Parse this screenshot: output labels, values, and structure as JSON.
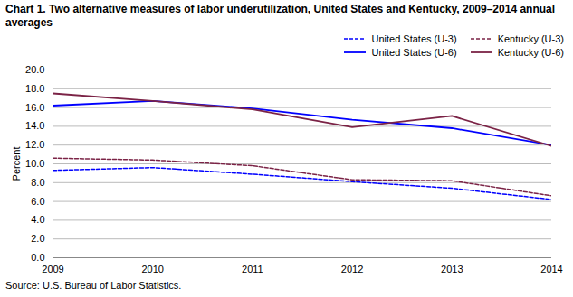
{
  "chart_data": {
    "type": "line",
    "title": "Chart 1. Two alternative measures of labor underutilization, United States and Kentucky, 2009–2014 annual averages",
    "y_label": "Percent",
    "caption": "Source: U.S. Bureau of Labor Statistics.",
    "x": [
      2009,
      2010,
      2011,
      2012,
      2013,
      2014
    ],
    "series": [
      {
        "name": "United States (U-3)",
        "color": "#0000FF",
        "line_style": "dashed",
        "values": [
          9.3,
          9.6,
          8.9,
          8.1,
          7.4,
          6.2
        ]
      },
      {
        "name": "Kentucky (U-3)",
        "color": "#7B2346",
        "line_style": "dashed",
        "values": [
          10.6,
          10.4,
          9.8,
          8.3,
          8.2,
          6.6
        ]
      },
      {
        "name": "United States (U-6)",
        "color": "#0000FF",
        "line_style": "solid",
        "values": [
          16.2,
          16.7,
          15.9,
          14.7,
          13.8,
          12.0
        ]
      },
      {
        "name": "Kentucky (U-6)",
        "color": "#7B2346",
        "line_style": "solid",
        "values": [
          17.5,
          16.7,
          15.8,
          13.9,
          15.1,
          11.9
        ]
      }
    ],
    "xlim": [
      2009,
      2014
    ],
    "xticks": [
      2009,
      2010,
      2011,
      2012,
      2013,
      2014
    ],
    "ylim": [
      0,
      20
    ],
    "yticks": [
      {
        "value": 0,
        "label": "0.0"
      },
      {
        "value": 2,
        "label": "2.0"
      },
      {
        "value": 4,
        "label": "4.0"
      },
      {
        "value": 6,
        "label": "6.0"
      },
      {
        "value": 8,
        "label": "8.0"
      },
      {
        "value": 10,
        "label": "10.0"
      },
      {
        "value": 12,
        "label": "12.0"
      },
      {
        "value": 14,
        "label": "14.0"
      },
      {
        "value": 16,
        "label": "16.0"
      },
      {
        "value": 18,
        "label": "18.0"
      },
      {
        "value": 20,
        "label": "20.0"
      }
    ],
    "grid": true,
    "legend": "upper right"
  }
}
